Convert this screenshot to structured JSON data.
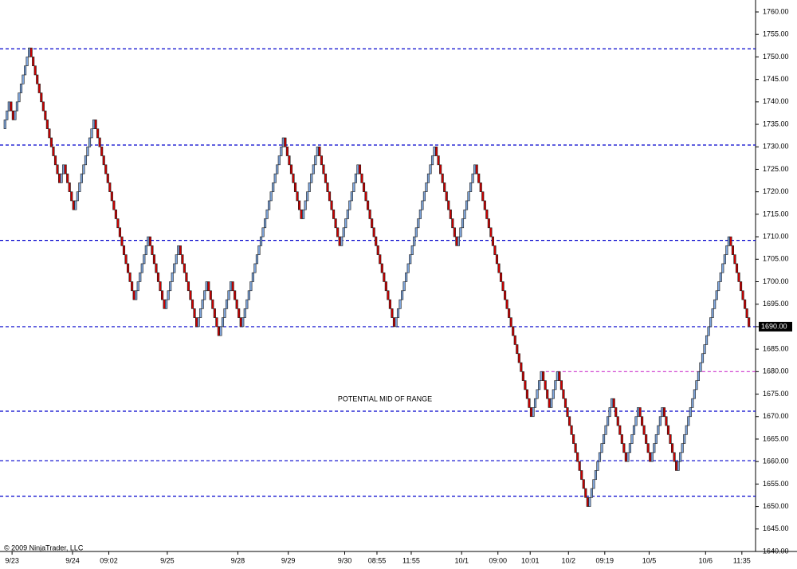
{
  "chart_data": {
    "type": "renko",
    "start": 1734,
    "values": [
      1736,
      1738,
      1740,
      1738,
      1736,
      1738,
      1740,
      1742,
      1744,
      1746,
      1748,
      1750,
      1752,
      1750,
      1748,
      1746,
      1744,
      1742,
      1740,
      1738,
      1736,
      1734,
      1732,
      1730,
      1728,
      1726,
      1724,
      1722,
      1724,
      1726,
      1724,
      1722,
      1720,
      1718,
      1716,
      1718,
      1720,
      1722,
      1724,
      1726,
      1728,
      1730,
      1732,
      1734,
      1736,
      1734,
      1732,
      1730,
      1728,
      1726,
      1724,
      1722,
      1720,
      1718,
      1716,
      1714,
      1712,
      1710,
      1708,
      1706,
      1704,
      1702,
      1700,
      1698,
      1696,
      1698,
      1700,
      1702,
      1704,
      1706,
      1708,
      1710,
      1708,
      1706,
      1704,
      1702,
      1700,
      1698,
      1696,
      1694,
      1696,
      1698,
      1700,
      1702,
      1704,
      1706,
      1708,
      1706,
      1704,
      1702,
      1700,
      1698,
      1696,
      1694,
      1692,
      1690,
      1692,
      1694,
      1696,
      1698,
      1700,
      1698,
      1696,
      1694,
      1692,
      1690,
      1688,
      1690,
      1692,
      1694,
      1696,
      1698,
      1700,
      1698,
      1696,
      1694,
      1692,
      1690,
      1692,
      1694,
      1696,
      1698,
      1700,
      1702,
      1704,
      1706,
      1708,
      1710,
      1712,
      1714,
      1716,
      1718,
      1720,
      1722,
      1724,
      1726,
      1728,
      1730,
      1732,
      1730,
      1728,
      1726,
      1724,
      1722,
      1720,
      1718,
      1716,
      1714,
      1716,
      1718,
      1720,
      1722,
      1724,
      1726,
      1728,
      1730,
      1728,
      1726,
      1724,
      1722,
      1720,
      1718,
      1716,
      1714,
      1712,
      1710,
      1708,
      1710,
      1712,
      1714,
      1716,
      1718,
      1720,
      1722,
      1724,
      1726,
      1724,
      1722,
      1720,
      1718,
      1716,
      1714,
      1712,
      1710,
      1708,
      1706,
      1704,
      1702,
      1700,
      1698,
      1696,
      1694,
      1692,
      1690,
      1692,
      1694,
      1696,
      1698,
      1700,
      1702,
      1704,
      1706,
      1708,
      1710,
      1712,
      1714,
      1716,
      1718,
      1720,
      1722,
      1724,
      1726,
      1728,
      1730,
      1728,
      1726,
      1724,
      1722,
      1720,
      1718,
      1716,
      1714,
      1712,
      1710,
      1708,
      1710,
      1712,
      1714,
      1716,
      1718,
      1720,
      1722,
      1724,
      1726,
      1724,
      1722,
      1720,
      1718,
      1716,
      1714,
      1712,
      1710,
      1708,
      1706,
      1704,
      1702,
      1700,
      1698,
      1696,
      1694,
      1692,
      1690,
      1688,
      1686,
      1684,
      1682,
      1680,
      1678,
      1676,
      1674,
      1672,
      1670,
      1672,
      1674,
      1676,
      1678,
      1680,
      1678,
      1676,
      1674,
      1672,
      1674,
      1676,
      1678,
      1680,
      1678,
      1676,
      1674,
      1672,
      1670,
      1668,
      1666,
      1664,
      1662,
      1660,
      1658,
      1656,
      1654,
      1652,
      1650,
      1652,
      1654,
      1656,
      1658,
      1660,
      1662,
      1664,
      1666,
      1668,
      1670,
      1672,
      1674,
      1672,
      1670,
      1668,
      1666,
      1664,
      1662,
      1660,
      1662,
      1664,
      1666,
      1668,
      1670,
      1672,
      1670,
      1668,
      1666,
      1664,
      1662,
      1660,
      1662,
      1664,
      1666,
      1668,
      1670,
      1672,
      1670,
      1668,
      1666,
      1664,
      1662,
      1660,
      1658,
      1660,
      1662,
      1664,
      1666,
      1668,
      1670,
      1672,
      1674,
      1676,
      1678,
      1680,
      1682,
      1684,
      1686,
      1688,
      1690,
      1692,
      1694,
      1696,
      1698,
      1700,
      1702,
      1704,
      1706,
      1708,
      1710,
      1708,
      1706,
      1704,
      1702,
      1700,
      1698,
      1696,
      1694,
      1692,
      1690
    ],
    "up_color": "#7fa6dc",
    "down_color": "#cc0000",
    "xlim": [
      0,
      372
    ],
    "xticks": [
      {
        "value": 4,
        "label": "9/23"
      },
      {
        "value": 34,
        "label": "9/24"
      },
      {
        "value": 52,
        "label": "09:02"
      },
      {
        "value": 81,
        "label": "9/25"
      },
      {
        "value": 116,
        "label": "9/28"
      },
      {
        "value": 141,
        "label": "9/29"
      },
      {
        "value": 169,
        "label": "9/30"
      },
      {
        "value": 185,
        "label": "08:55"
      },
      {
        "value": 202,
        "label": "11:55"
      },
      {
        "value": 227,
        "label": "10/1"
      },
      {
        "value": 245,
        "label": "09:00"
      },
      {
        "value": 261,
        "label": "10:01"
      },
      {
        "value": 280,
        "label": "10/2"
      },
      {
        "value": 298,
        "label": "09:19"
      },
      {
        "value": 320,
        "label": "10/5"
      },
      {
        "value": 348,
        "label": "10/6"
      },
      {
        "value": 366,
        "label": "11:35"
      }
    ],
    "ylim": [
      1640,
      1760
    ],
    "yticks": [
      {
        "value": 1640,
        "label": "1640.00"
      },
      {
        "value": 1645,
        "label": "1645.00"
      },
      {
        "value": 1650,
        "label": "1650.00"
      },
      {
        "value": 1655,
        "label": "1655.00"
      },
      {
        "value": 1660,
        "label": "1660.00"
      },
      {
        "value": 1665,
        "label": "1665.00"
      },
      {
        "value": 1670,
        "label": "1670.00"
      },
      {
        "value": 1675,
        "label": "1675.00"
      },
      {
        "value": 1680,
        "label": "1680.00"
      },
      {
        "value": 1685,
        "label": "1685.00"
      },
      {
        "value": 1690,
        "label": "1690.00"
      },
      {
        "value": 1695,
        "label": "1695.00"
      },
      {
        "value": 1700,
        "label": "1700.00"
      },
      {
        "value": 1705,
        "label": "1705.00"
      },
      {
        "value": 1710,
        "label": "1710.00"
      },
      {
        "value": 1715,
        "label": "1715.00"
      },
      {
        "value": 1720,
        "label": "1720.00"
      },
      {
        "value": 1725,
        "label": "1725.00"
      },
      {
        "value": 1730,
        "label": "1730.00"
      },
      {
        "value": 1735,
        "label": "1735.00"
      },
      {
        "value": 1740,
        "label": "1740.00"
      },
      {
        "value": 1745,
        "label": "1745.00"
      },
      {
        "value": 1750,
        "label": "1750.00"
      },
      {
        "value": 1755,
        "label": "1755.00"
      },
      {
        "value": 1760,
        "label": "1760.00"
      }
    ],
    "levels": [
      {
        "value": 1751.8,
        "color": "#0000cc"
      },
      {
        "value": 1730.4,
        "color": "#0000cc"
      },
      {
        "value": 1709.2,
        "color": "#0000cc"
      },
      {
        "value": 1690,
        "color": "#0000cc"
      },
      {
        "value": 1671.2,
        "color": "#0000cc"
      },
      {
        "value": 1660.2,
        "color": "#0000cc"
      },
      {
        "value": 1652.3,
        "color": "#0000cc"
      },
      {
        "value": 1680,
        "color": "#cc33cc",
        "from": 266
      }
    ],
    "last_price": {
      "value": 1690,
      "label": "1690.00"
    },
    "annotation": "POTENTIAL MID OF RANGE",
    "copyright": "© 2009 NinjaTrader, LLC"
  }
}
